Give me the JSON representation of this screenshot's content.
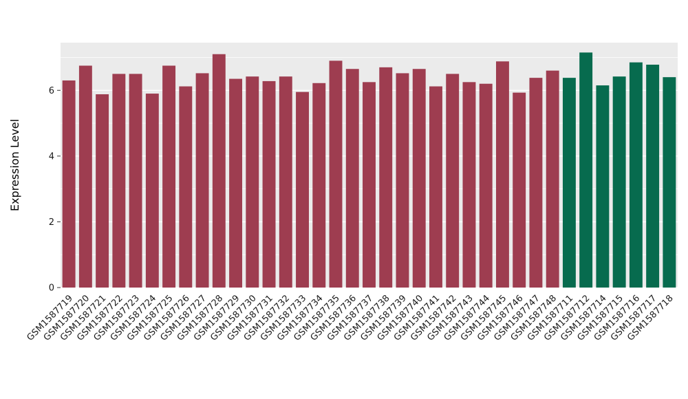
{
  "figure": {
    "background": "#ffffff"
  },
  "chart_data": {
    "type": "bar",
    "title": "",
    "xlabel": "",
    "ylabel": "Expression Level",
    "ylim": [
      0,
      7.45
    ],
    "yticks": [
      0,
      2,
      4,
      6
    ],
    "yticks_minor": [
      1,
      3,
      5,
      7
    ],
    "grid": true,
    "legend": "none",
    "panel_bg": "#ebebeb",
    "grid_color": "#ffffff",
    "axis_text_color": "#1a1a1a",
    "axis_title_color": "#000000",
    "tick_mark_color": "#333333",
    "categories": [
      "GSM1587719",
      "GSM1587720",
      "GSM1587721",
      "GSM1587722",
      "GSM1587723",
      "GSM1587724",
      "GSM1587725",
      "GSM1587726",
      "GSM1587727",
      "GSM1587728",
      "GSM1587729",
      "GSM1587730",
      "GSM1587731",
      "GSM1587732",
      "GSM1587733",
      "GSM1587734",
      "GSM1587735",
      "GSM1587736",
      "GSM1587737",
      "GSM1587738",
      "GSM1587739",
      "GSM1587740",
      "GSM1587741",
      "GSM1587742",
      "GSM1587743",
      "GSM1587744",
      "GSM1587745",
      "GSM1587746",
      "GSM1587747",
      "GSM1587748",
      "GSM1587711",
      "GSM1587712",
      "GSM1587714",
      "GSM1587715",
      "GSM1587716",
      "GSM1587717",
      "GSM1587718"
    ],
    "values": [
      6.3,
      6.75,
      5.88,
      6.5,
      6.5,
      5.9,
      6.75,
      6.12,
      6.52,
      7.1,
      6.35,
      6.42,
      6.28,
      6.42,
      5.95,
      6.22,
      6.9,
      6.65,
      6.25,
      6.7,
      6.52,
      6.65,
      6.12,
      6.5,
      6.25,
      6.2,
      6.88,
      5.93,
      6.38,
      6.6,
      6.38,
      7.15,
      6.15,
      6.42,
      6.85,
      6.78,
      6.4
    ],
    "groups": [
      0,
      0,
      0,
      0,
      0,
      0,
      0,
      0,
      0,
      0,
      0,
      0,
      0,
      0,
      0,
      0,
      0,
      0,
      0,
      0,
      0,
      0,
      0,
      0,
      0,
      0,
      0,
      0,
      0,
      0,
      1,
      1,
      1,
      1,
      1,
      1,
      1
    ],
    "group_colors": [
      "#9e3d50",
      "#076b4e"
    ]
  }
}
